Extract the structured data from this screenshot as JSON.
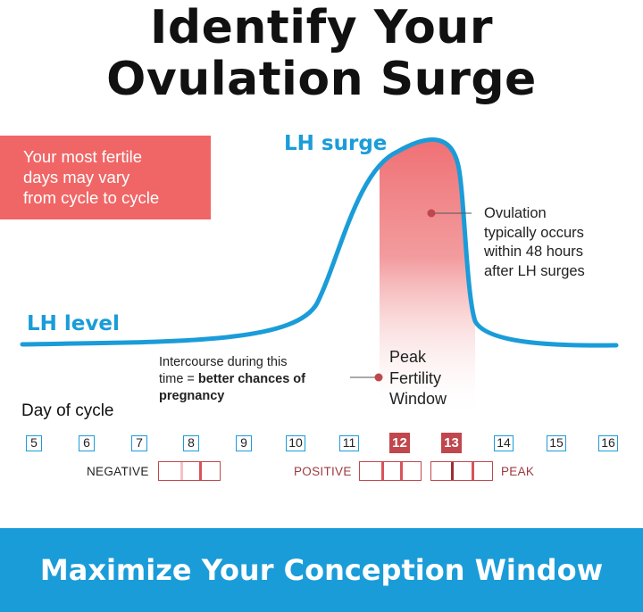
{
  "title": {
    "line1": "Identify Your",
    "line2": "Ovulation Surge"
  },
  "note": {
    "line1": "Your most fertile",
    "line2": "days may vary",
    "line3": "from cycle to cycle"
  },
  "labels": {
    "lh_surge": "LH surge",
    "lh_level": "LH level",
    "day_of_cycle": "Day of cycle"
  },
  "ovulation_note": {
    "line1": "Ovulation",
    "line2": "typically occurs",
    "line3": "within 48 hours",
    "line4": "after LH surges"
  },
  "intercourse_note": {
    "line1": "Intercourse during this",
    "line2_plain": "time = ",
    "line2_bold": "better chances of",
    "line3_bold": "pregnancy"
  },
  "peak_window": {
    "line1": "Peak",
    "line2": "Fertility",
    "line3": "Window"
  },
  "days": [
    "5",
    "6",
    "7",
    "8",
    "9",
    "10",
    "11",
    "12",
    "13",
    "14",
    "15",
    "16"
  ],
  "highlighted_days": [
    "12",
    "13"
  ],
  "strips": {
    "negative": "NEGATIVE",
    "positive": "POSITIVE",
    "peak": "PEAK"
  },
  "footer": "Maximize Your Conception Window",
  "colors": {
    "blue": "#1a9cd9",
    "coral": "#f06666",
    "dark_red": "#c0474d"
  }
}
